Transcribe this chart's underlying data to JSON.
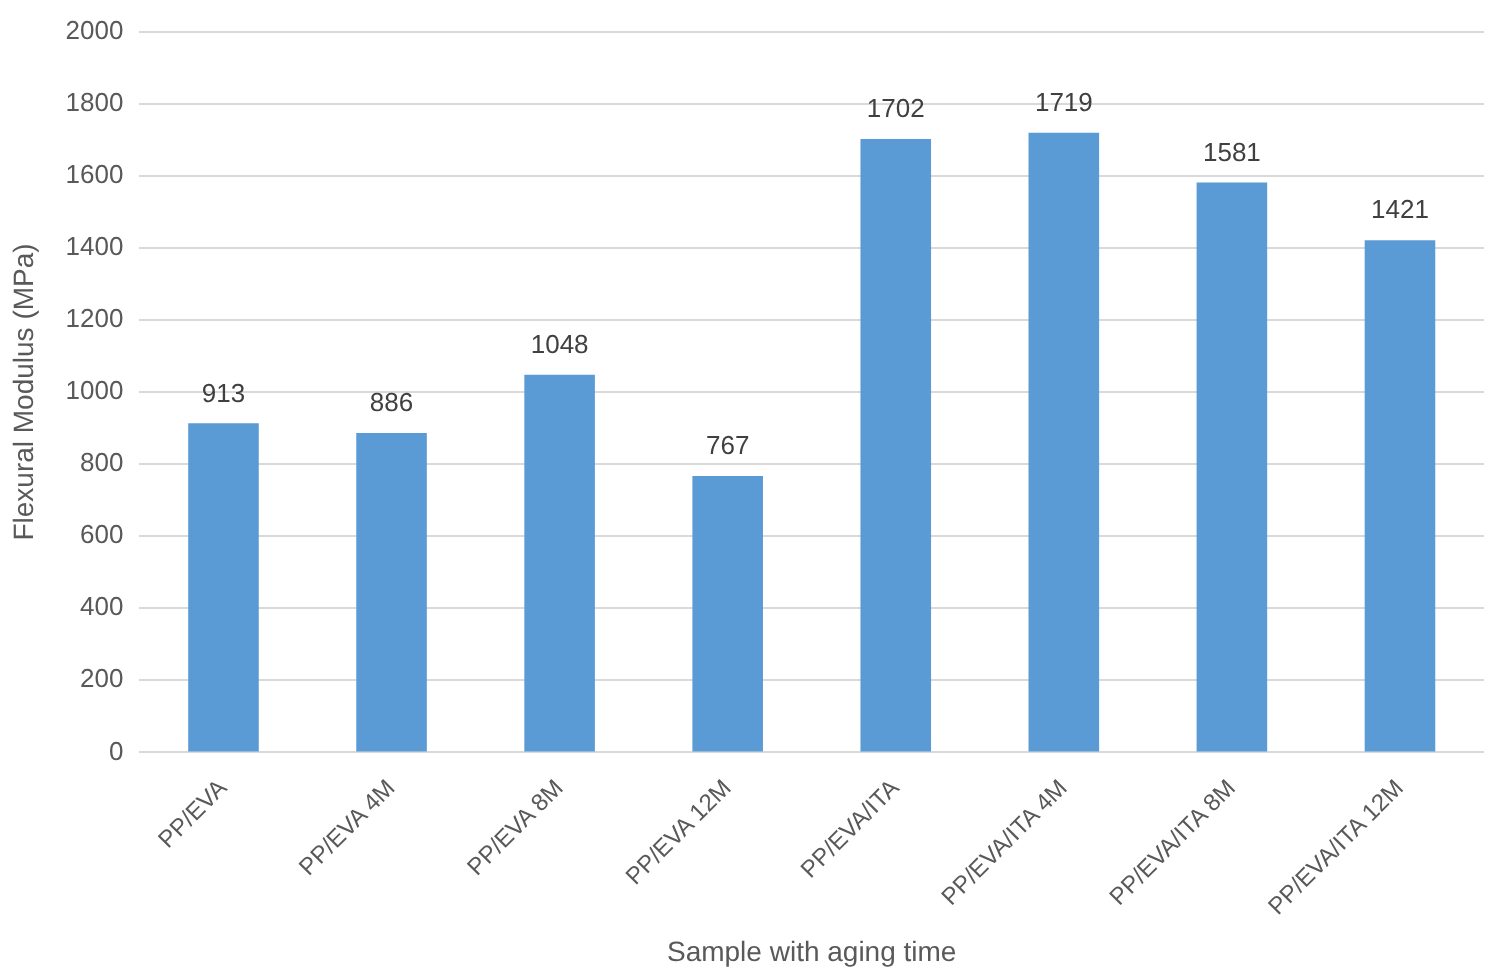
{
  "chart_data": {
    "type": "bar",
    "xlabel": "Sample with aging time",
    "ylabel": "Flexural Modulus (MPa)",
    "categories": [
      "PP/EVA",
      "PP/EVA 4M",
      "PP/EVA 8M",
      "PP/EVA 12M",
      "PP/EVA/ITA",
      "PP/EVA/ITA 4M",
      "PP/EVA/ITA 8M",
      "PP/EVA/ITA 12M"
    ],
    "values": [
      913,
      886,
      1048,
      767,
      1702,
      1719,
      1581,
      1421
    ],
    "color": "#5b9bd5",
    "ylim": [
      0,
      2000
    ],
    "yticks": [
      0,
      200,
      400,
      600,
      800,
      1000,
      1200,
      1400,
      1600,
      1800,
      2000
    ],
    "grid": "y",
    "data_labels": true
  }
}
